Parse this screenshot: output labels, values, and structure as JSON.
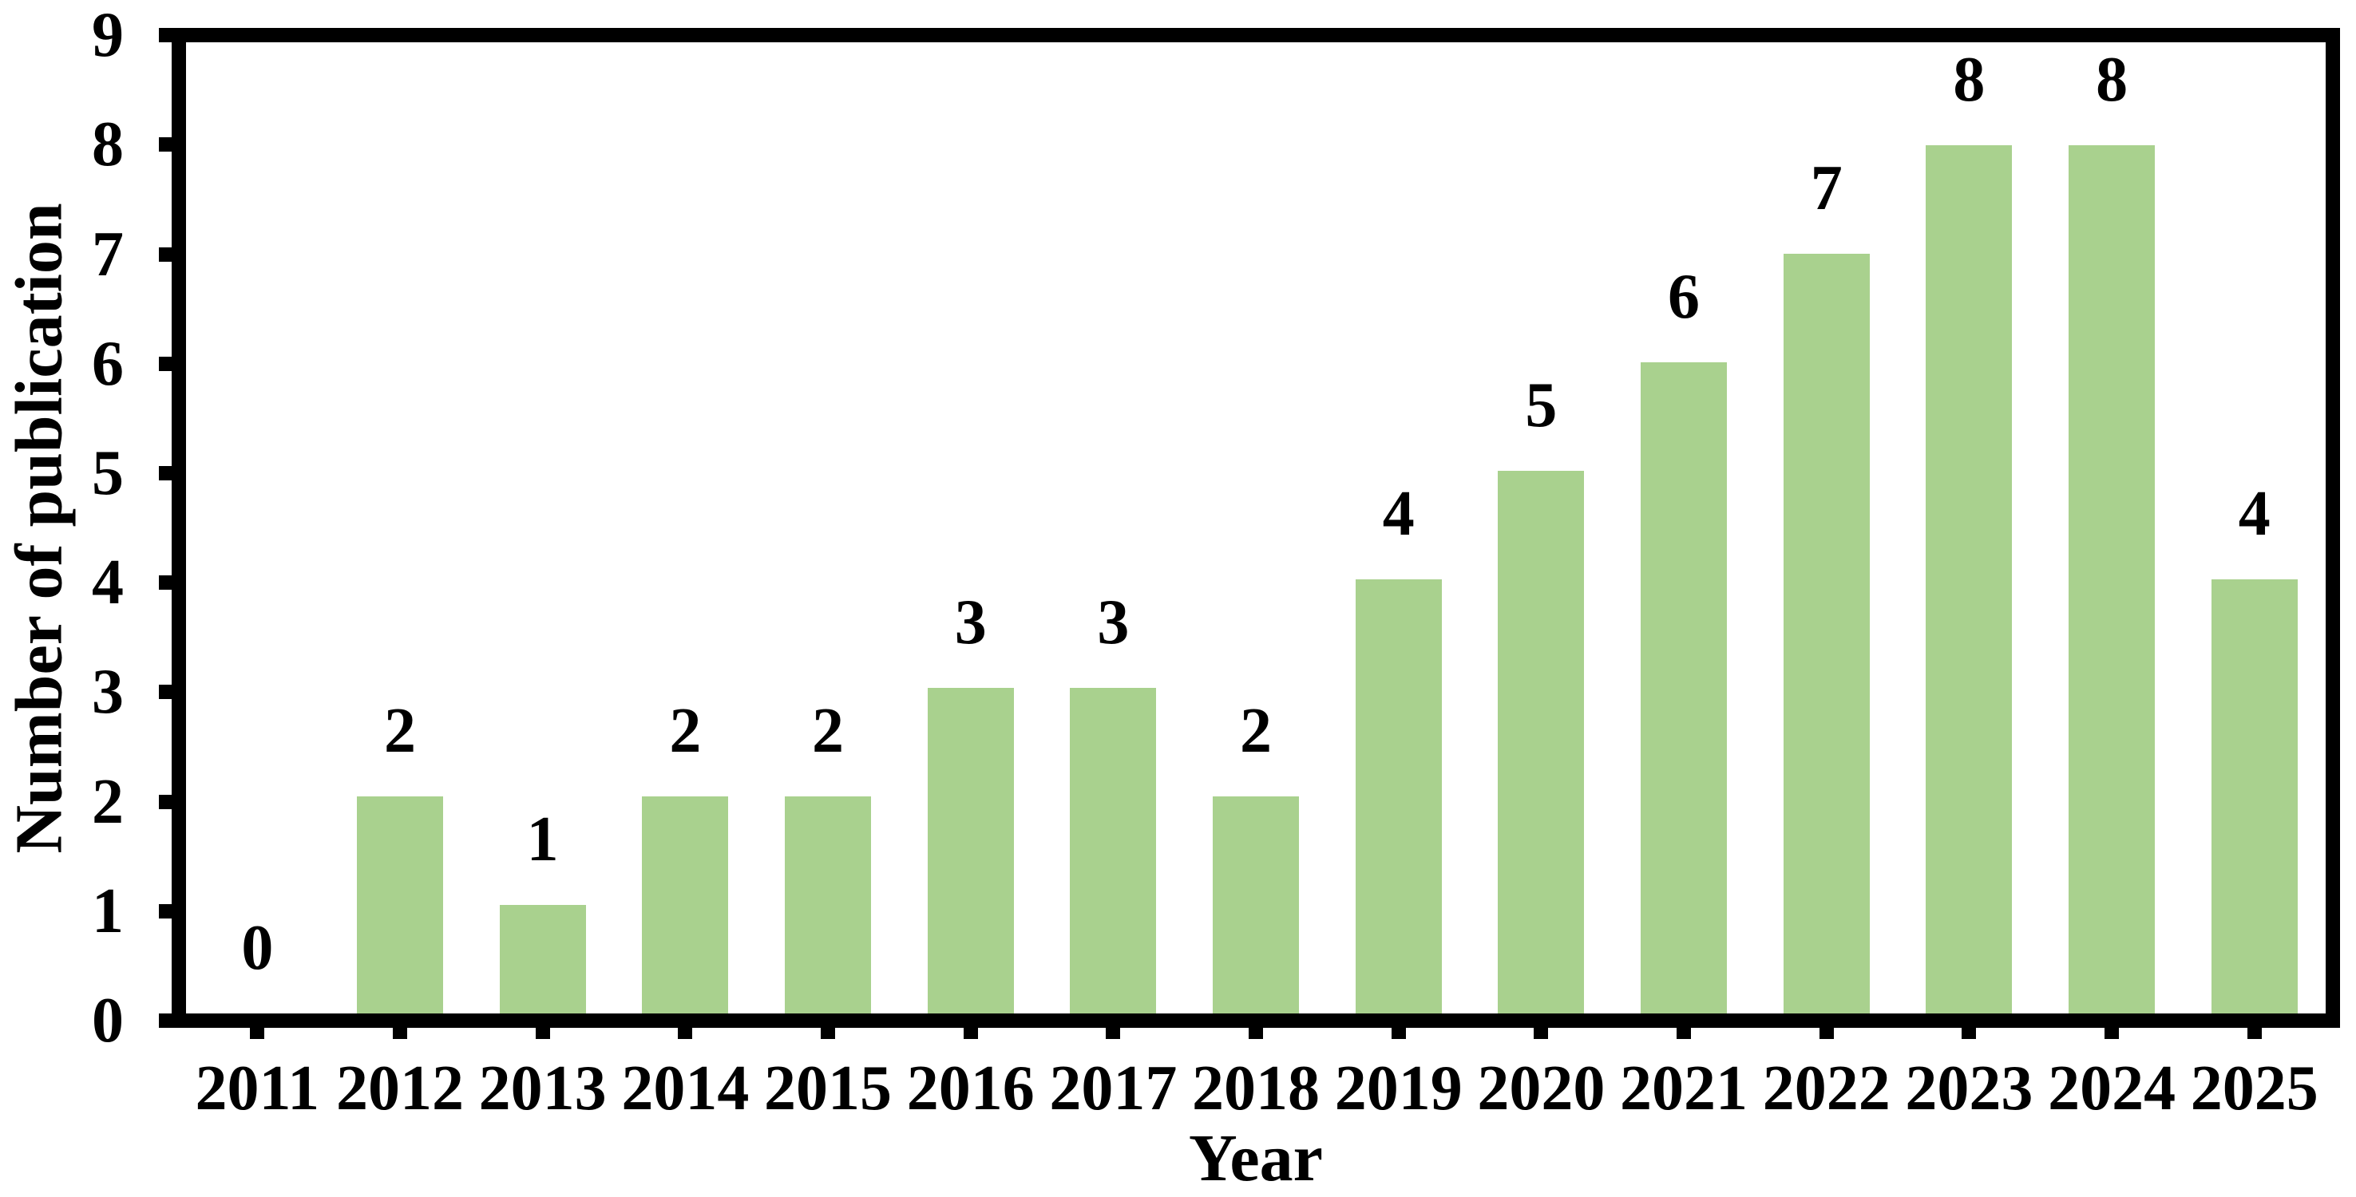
{
  "chart_data": {
    "type": "bar",
    "title": "",
    "xlabel": "Year",
    "ylabel": "Number of publication",
    "categories": [
      "2011",
      "2012",
      "2013",
      "2014",
      "2015",
      "2016",
      "2017",
      "2018",
      "2019",
      "2020",
      "2021",
      "2022",
      "2023",
      "2024",
      "2025"
    ],
    "values": [
      0,
      2,
      1,
      2,
      2,
      3,
      3,
      2,
      4,
      5,
      6,
      7,
      8,
      8,
      4
    ],
    "show_data_labels": true,
    "ylim": [
      0,
      9
    ],
    "yticks": [
      0,
      1,
      2,
      3,
      4,
      5,
      6,
      7,
      8,
      9
    ],
    "grid": false,
    "legend": null,
    "bar_color": "#a9d18e",
    "axis_color": "#000000",
    "text_color": "#000000",
    "background_color": "#ffffff"
  }
}
